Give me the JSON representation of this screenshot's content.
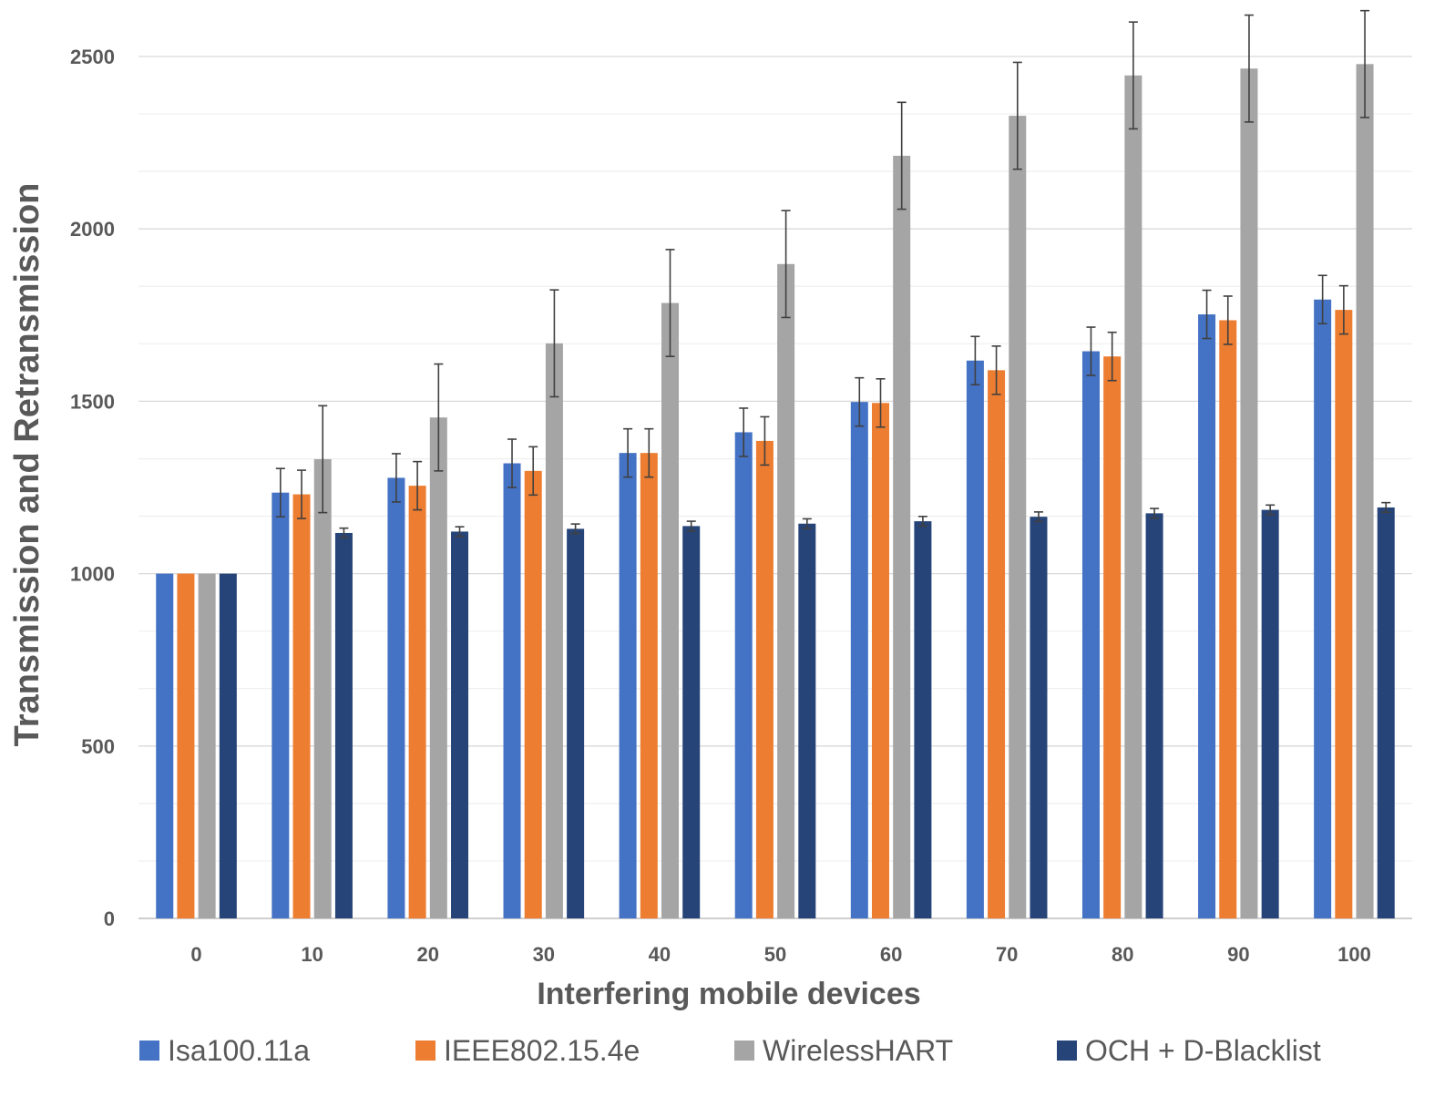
{
  "chart_data": {
    "type": "bar",
    "title": "",
    "xlabel": "Interfering mobile devices",
    "ylabel": "Transmission and Retransmission",
    "categories": [
      "0",
      "10",
      "20",
      "30",
      "40",
      "50",
      "60",
      "70",
      "80",
      "90",
      "100"
    ],
    "ylim": [
      0,
      2500
    ],
    "yticks": [
      0,
      500,
      1000,
      1500,
      2000,
      2500
    ],
    "grid": true,
    "legend": "bottom",
    "series": [
      {
        "name": "Isa100.11a",
        "color": "#4472C4",
        "values": [
          1000,
          1235,
          1278,
          1320,
          1350,
          1410,
          1498,
          1618,
          1645,
          1752,
          1795
        ],
        "errors": [
          0,
          70,
          70,
          70,
          70,
          70,
          70,
          70,
          70,
          70,
          70
        ]
      },
      {
        "name": "IEEE802.15.4e",
        "color": "#ED7D31",
        "values": [
          1000,
          1230,
          1255,
          1298,
          1350,
          1385,
          1495,
          1590,
          1630,
          1735,
          1765
        ],
        "errors": [
          0,
          70,
          70,
          70,
          70,
          70,
          70,
          70,
          70,
          70,
          70
        ]
      },
      {
        "name": "WirelessHART",
        "color": "#A5A5A5",
        "values": [
          1000,
          1332,
          1453,
          1668,
          1785,
          1898,
          2212,
          2328,
          2445,
          2465,
          2478
        ],
        "errors": [
          0,
          155,
          155,
          155,
          155,
          155,
          155,
          155,
          155,
          155,
          155
        ]
      },
      {
        "name": "OCH + D-Blacklist",
        "color": "#264478",
        "values": [
          1000,
          1118,
          1122,
          1130,
          1138,
          1145,
          1152,
          1165,
          1175,
          1185,
          1192
        ],
        "errors": [
          0,
          14,
          14,
          14,
          14,
          14,
          14,
          14,
          14,
          14,
          14
        ]
      }
    ]
  }
}
